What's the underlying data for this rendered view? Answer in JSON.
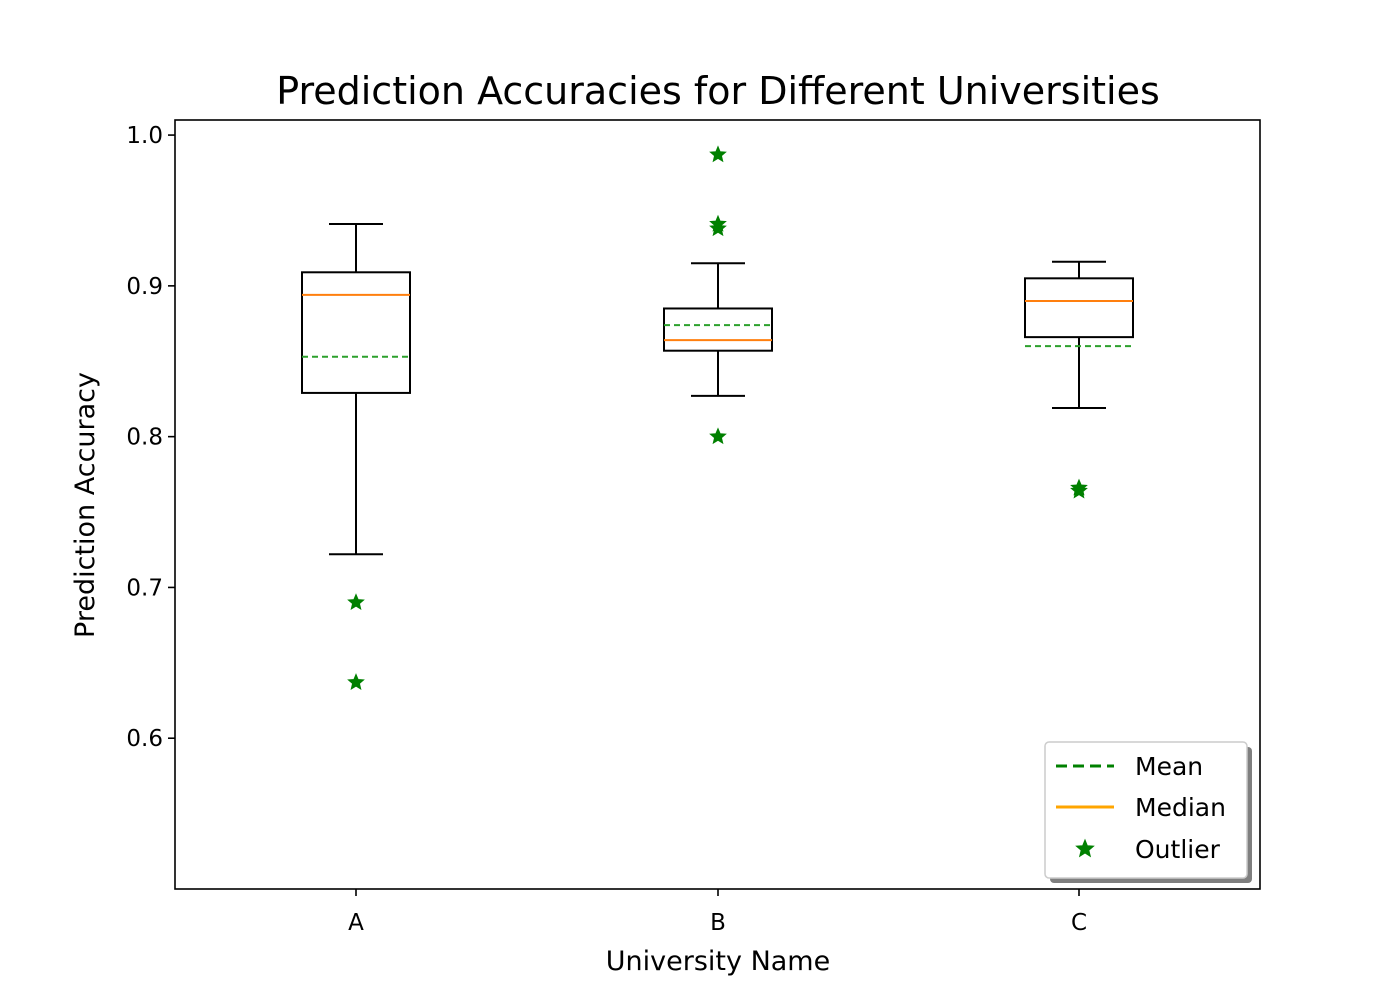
{
  "chart_data": {
    "type": "box",
    "title": "Prediction Accuracies for Different Universities",
    "xlabel": "University Name",
    "ylabel": "Prediction Accuracy",
    "ylim": [
      0.5,
      1.01
    ],
    "yticks": [
      "0.6",
      "0.7",
      "0.8",
      "0.9",
      "1.0"
    ],
    "ytick_values": [
      0.6,
      0.7,
      0.8,
      0.9,
      1.0
    ],
    "categories": [
      "A",
      "B",
      "C"
    ],
    "boxes": [
      {
        "category": "A",
        "whisker_low": 0.722,
        "q1": 0.829,
        "median": 0.894,
        "q3": 0.909,
        "whisker_high": 0.941,
        "mean": 0.853,
        "outliers": [
          0.69,
          0.637
        ]
      },
      {
        "category": "B",
        "whisker_low": 0.827,
        "q1": 0.857,
        "median": 0.864,
        "q3": 0.885,
        "whisker_high": 0.915,
        "mean": 0.874,
        "outliers": [
          0.987,
          0.941,
          0.938,
          0.8
        ]
      },
      {
        "category": "C",
        "whisker_low": 0.819,
        "q1": 0.866,
        "median": 0.89,
        "q3": 0.905,
        "whisker_high": 0.916,
        "mean": 0.86,
        "outliers": [
          0.766,
          0.764
        ]
      }
    ],
    "legend": {
      "position": "lower right",
      "entries": [
        {
          "label": "Mean",
          "style": "dashed-line",
          "color": "#008000"
        },
        {
          "label": "Median",
          "style": "solid-line",
          "color": "#FFA500"
        },
        {
          "label": "Outlier",
          "style": "star-marker",
          "color": "#008000"
        }
      ]
    },
    "colors": {
      "box": "#000000",
      "median": "#ff7f0e",
      "mean": "#2ca02c",
      "outlier": "#008000"
    }
  }
}
